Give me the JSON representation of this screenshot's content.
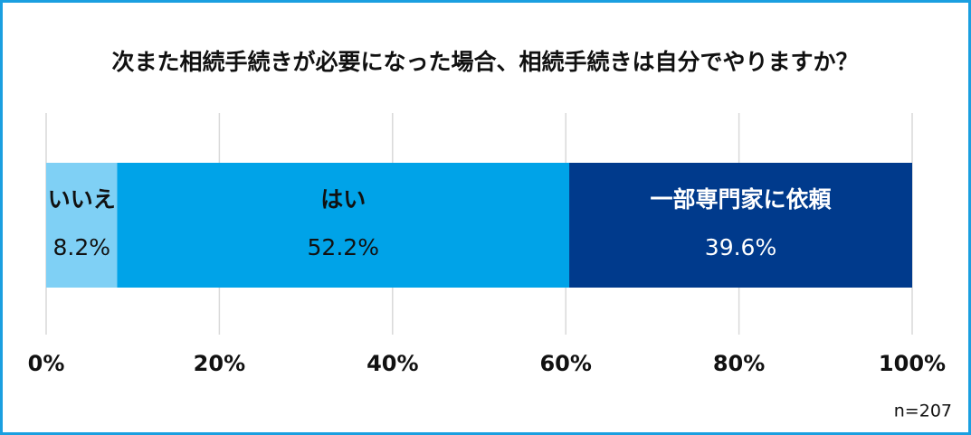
{
  "chart_data": {
    "type": "bar",
    "orientation": "horizontal",
    "stacked": true,
    "title": "次また相続手続きが必要になった場合、相続手続きは自分でやりますか？",
    "series": [
      {
        "name": "いいえ",
        "color": "#7fd0f5",
        "values": [
          8.2
        ],
        "value_labels": [
          "8.2%"
        ]
      },
      {
        "name": "はい",
        "color": "#00a3e8",
        "values": [
          52.2
        ],
        "value_labels": [
          "52.2%"
        ]
      },
      {
        "name": "一部専門家に依頼",
        "color": "#003a8c",
        "values": [
          39.6
        ],
        "value_labels": [
          "39.6%"
        ]
      }
    ],
    "xlim": [
      0,
      100
    ],
    "xticks": [
      {
        "value": 0,
        "label": "0%"
      },
      {
        "value": 20,
        "label": "20%"
      },
      {
        "value": 40,
        "label": "40%"
      },
      {
        "value": 60,
        "label": "60%"
      },
      {
        "value": 80,
        "label": "80%"
      },
      {
        "value": 100,
        "label": "100%"
      }
    ],
    "grid": true,
    "annotation": "n=207"
  }
}
